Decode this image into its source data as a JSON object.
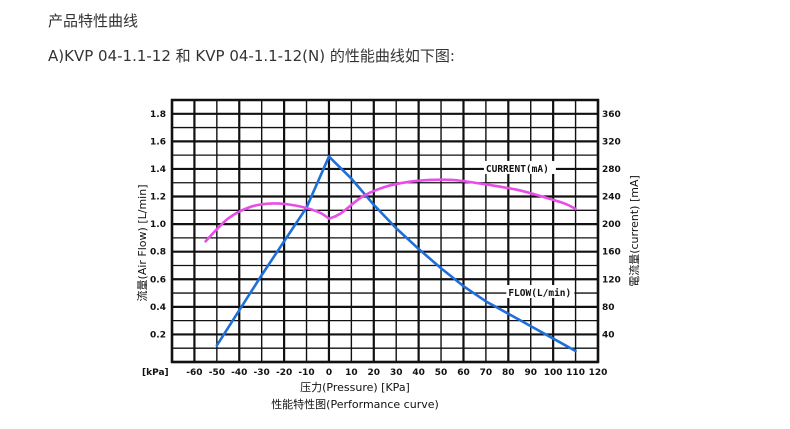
{
  "page": {
    "heading": "产品特性曲线",
    "subheading": "A)KVP 04-1.1-12 和 KVP 04-1.1-12(N) 的性能曲线如下图:"
  },
  "chart_data": {
    "type": "line",
    "title": "性能特性图(Performance curve)",
    "xlabel": "压力(Pressure) [KPa]",
    "x_unit_label": "[kPa]",
    "ylabel_left": "流量(Air Flow) [L/min]",
    "ylabel_right": "電流量(current) [mA]",
    "xlim": [
      -70,
      120
    ],
    "x_ticks": [
      -60,
      -50,
      -40,
      -30,
      -20,
      -10,
      0,
      10,
      20,
      30,
      40,
      50,
      60,
      70,
      80,
      90,
      100,
      110,
      120
    ],
    "ylim_left": [
      0,
      1.9
    ],
    "y_ticks_left": [
      0.2,
      0.4,
      0.6,
      0.8,
      1.0,
      1.2,
      1.4,
      1.6,
      1.8
    ],
    "ylim_right": [
      0,
      380
    ],
    "y_ticks_right": [
      40,
      80,
      120,
      160,
      200,
      240,
      280,
      320,
      360
    ],
    "grid": true,
    "series": [
      {
        "name": "FLOW(L/min)",
        "axis": "left",
        "color": "#1e6fd9",
        "points": [
          [
            -50,
            0.12
          ],
          [
            -30,
            0.63
          ],
          [
            -10,
            1.12
          ],
          [
            0,
            1.49
          ],
          [
            10,
            1.33
          ],
          [
            20,
            1.14
          ],
          [
            30,
            0.97
          ],
          [
            40,
            0.82
          ],
          [
            50,
            0.68
          ],
          [
            60,
            0.55
          ],
          [
            70,
            0.44
          ],
          [
            80,
            0.35
          ],
          [
            90,
            0.26
          ],
          [
            100,
            0.17
          ],
          [
            110,
            0.08
          ]
        ]
      },
      {
        "name": "CURRENT(mA)",
        "axis": "right",
        "color": "#e64ee6",
        "points": [
          [
            -55,
            175
          ],
          [
            -45,
            208
          ],
          [
            -35,
            225
          ],
          [
            -25,
            230
          ],
          [
            -15,
            227
          ],
          [
            -5,
            218
          ],
          [
            0,
            208
          ],
          [
            5,
            215
          ],
          [
            15,
            240
          ],
          [
            25,
            254
          ],
          [
            35,
            261
          ],
          [
            45,
            264
          ],
          [
            55,
            264
          ],
          [
            65,
            260
          ],
          [
            75,
            255
          ],
          [
            85,
            249
          ],
          [
            95,
            240
          ],
          [
            105,
            230
          ],
          [
            110,
            222
          ]
        ]
      }
    ]
  }
}
